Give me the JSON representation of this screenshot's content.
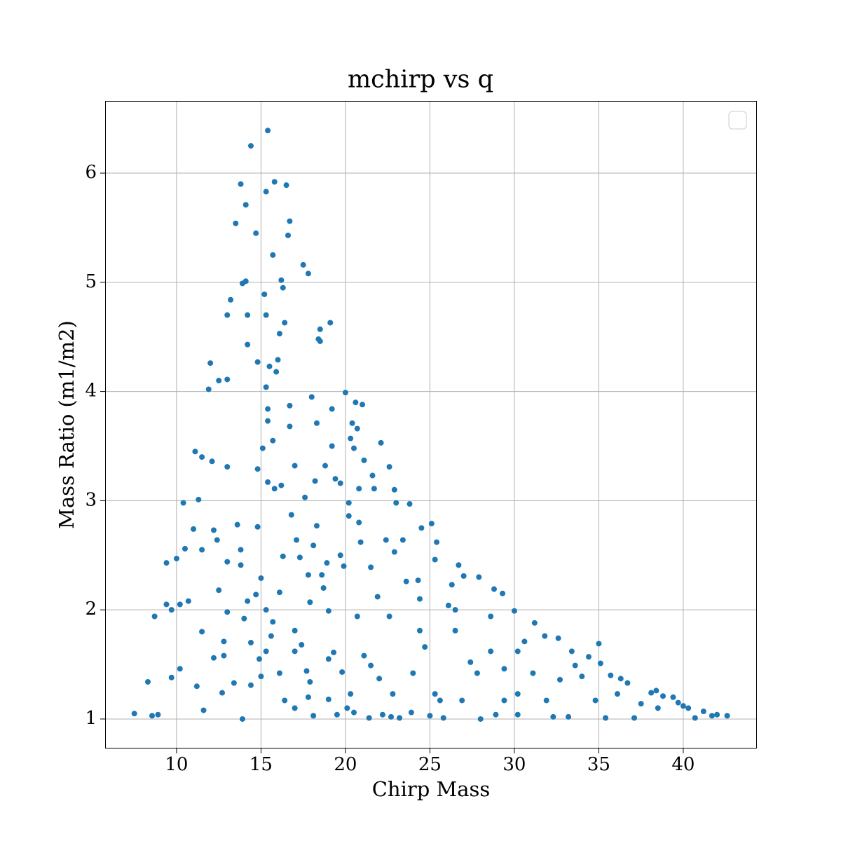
{
  "chart_data": {
    "type": "scatter",
    "title": "mchirp vs q",
    "x_label": "Chirp Mass",
    "y_label": "Mass Ratio (m1/m2)",
    "color": "#1f77b4",
    "grid": true,
    "xlim": [
      5.77,
      44.36
    ],
    "ylim": [
      0.73,
      6.655
    ],
    "xticks": [
      10,
      15,
      20,
      25,
      30,
      35,
      40
    ],
    "yticks": [
      1,
      2,
      3,
      4,
      5,
      6
    ],
    "x": [
      7.5,
      8.3,
      8.55,
      8.9,
      8.7,
      9.4,
      9.4,
      9.7,
      9.7,
      10.0,
      10.2,
      10.2,
      10.4,
      10.5,
      10.7,
      11.0,
      11.1,
      11.2,
      11.3,
      11.5,
      11.5,
      11.5,
      11.6,
      11.9,
      12.0,
      12.1,
      12.2,
      12.2,
      12.4,
      12.5,
      12.5,
      12.7,
      12.8,
      12.8,
      13.0,
      13.0,
      13.0,
      13.0,
      13.0,
      13.2,
      13.4,
      13.5,
      13.6,
      13.8,
      13.9,
      13.8,
      13.8,
      13.9,
      14.1,
      14.1,
      14.0,
      14.2,
      14.2,
      14.2,
      14.4,
      14.4,
      14.4,
      14.7,
      14.8,
      14.8,
      14.8,
      14.7,
      14.9,
      15.0,
      15.0,
      15.1,
      15.2,
      15.3,
      15.3,
      15.4,
      15.3,
      15.3,
      15.4,
      15.4,
      15.5,
      15.4,
      15.6,
      15.7,
      15.7,
      15.8,
      15.7,
      15.8,
      15.9,
      16.0,
      16.1,
      16.1,
      16.1,
      16.2,
      16.2,
      16.3,
      16.4,
      16.3,
      16.4,
      16.5,
      16.6,
      16.7,
      16.7,
      16.7,
      16.8,
      17.0,
      17.0,
      17.1,
      17.0,
      17.3,
      17.5,
      17.6,
      17.7,
      17.8,
      17.8,
      17.9,
      17.9,
      18.0,
      18.1,
      18.1,
      18.2,
      18.3,
      18.3,
      18.4,
      18.5,
      18.5,
      18.6,
      18.7,
      18.8,
      18.9,
      19.0,
      19.0,
      19.1,
      19.2,
      19.2,
      19.4,
      19.3,
      19.5,
      19.7,
      19.7,
      19.8,
      20.0,
      19.9,
      20.1,
      20.2,
      20.2,
      20.3,
      20.4,
      20.5,
      20.5,
      20.6,
      20.7,
      20.8,
      20.8,
      20.9,
      21.0,
      21.1,
      21.1,
      21.4,
      21.5,
      21.6,
      21.7,
      21.9,
      22.0,
      22.1,
      22.2,
      22.4,
      22.6,
      22.7,
      22.9,
      22.9,
      23.0,
      23.2,
      23.4,
      23.6,
      23.8,
      23.9,
      24.3,
      24.5,
      24.7,
      25.0,
      25.1,
      25.3,
      25.4,
      25.6,
      25.8,
      26.1,
      26.3,
      26.7,
      27.0,
      27.4,
      28.0,
      27.9,
      28.8,
      28.9,
      29.3,
      30.0,
      30.2,
      30.6,
      31.2,
      31.8,
      32.3,
      32.6,
      33.2,
      33.4,
      34.0,
      34.4,
      35.0,
      35.1,
      35.4,
      35.7,
      36.3,
      36.7,
      37.1,
      37.5,
      38.1,
      38.4,
      38.8,
      39.4,
      39.7,
      40.0,
      40.3,
      40.7,
      41.2,
      41.7,
      42.0,
      42.6,
      22.6,
      24.4,
      26.5,
      28.6,
      29.4,
      27.8,
      24.0,
      21.5,
      19.0,
      17.4,
      31.1,
      32.7,
      34.8,
      25.3,
      22.8,
      20.3,
      17.8,
      30.2,
      26.9,
      29.4,
      31.9,
      38.5,
      26.5,
      24.4,
      20.7,
      15.3,
      17.0,
      28.6,
      30.2,
      33.6,
      36.1
    ],
    "values": [
      1.05,
      1.34,
      1.03,
      1.04,
      1.94,
      2.43,
      2.05,
      2.0,
      1.38,
      2.47,
      2.05,
      1.46,
      2.98,
      2.56,
      2.08,
      2.74,
      3.45,
      1.3,
      3.01,
      3.4,
      2.55,
      1.8,
      1.08,
      4.02,
      4.26,
      3.36,
      1.56,
      2.73,
      2.64,
      4.1,
      2.18,
      1.24,
      1.71,
      1.58,
      4.11,
      4.7,
      3.31,
      2.44,
      1.98,
      4.84,
      1.33,
      5.54,
      2.78,
      5.9,
      4.99,
      2.55,
      2.41,
      1.0,
      5.71,
      5.01,
      1.92,
      2.08,
      4.7,
      4.43,
      6.25,
      1.7,
      1.31,
      5.45,
      2.76,
      4.27,
      3.29,
      2.14,
      1.55,
      2.29,
      1.39,
      3.48,
      4.89,
      4.7,
      5.83,
      6.39,
      4.04,
      1.62,
      3.84,
      3.73,
      4.23,
      3.17,
      1.76,
      5.25,
      3.55,
      3.11,
      1.89,
      5.92,
      4.18,
      4.29,
      2.16,
      1.42,
      4.53,
      3.14,
      5.02,
      4.95,
      4.63,
      2.49,
      1.17,
      5.89,
      5.43,
      5.56,
      3.68,
      3.87,
      2.87,
      3.32,
      1.62,
      2.64,
      1.1,
      2.48,
      5.16,
      3.03,
      1.44,
      5.08,
      2.32,
      2.07,
      1.34,
      3.95,
      2.59,
      1.03,
      3.18,
      2.77,
      3.71,
      4.48,
      4.46,
      4.57,
      2.32,
      2.2,
      3.32,
      2.43,
      1.99,
      1.18,
      4.63,
      3.84,
      3.5,
      3.2,
      1.61,
      1.04,
      3.16,
      2.5,
      1.43,
      3.99,
      2.4,
      1.1,
      2.98,
      2.86,
      3.57,
      3.71,
      3.48,
      1.06,
      3.9,
      3.66,
      3.11,
      2.8,
      2.62,
      3.88,
      3.37,
      1.58,
      1.01,
      2.39,
      3.23,
      3.11,
      2.12,
      1.37,
      3.53,
      1.04,
      2.64,
      3.31,
      1.02,
      3.1,
      2.53,
      2.98,
      1.01,
      2.64,
      2.26,
      2.97,
      1.06,
      2.27,
      2.75,
      1.66,
      1.03,
      2.79,
      2.46,
      2.62,
      1.17,
      1.01,
      2.04,
      2.23,
      2.41,
      2.31,
      1.52,
      1.0,
      2.3,
      2.19,
      1.04,
      2.15,
      1.99,
      1.04,
      1.71,
      1.88,
      1.76,
      1.02,
      1.74,
      1.02,
      1.62,
      1.39,
      1.57,
      1.69,
      1.51,
      1.01,
      1.4,
      1.37,
      1.33,
      1.01,
      1.14,
      1.24,
      1.26,
      1.21,
      1.2,
      1.15,
      1.12,
      1.1,
      1.01,
      1.07,
      1.03,
      1.04,
      1.03,
      1.94,
      2.1,
      1.81,
      1.62,
      1.46,
      1.42,
      1.42,
      1.49,
      1.55,
      1.68,
      1.42,
      1.36,
      1.17,
      1.23,
      1.23,
      1.23,
      1.2,
      1.23,
      1.17,
      1.17,
      1.17,
      1.1,
      2.0,
      1.81,
      1.94,
      2.0,
      1.81,
      1.94,
      1.62,
      1.49,
      1.23
    ]
  }
}
